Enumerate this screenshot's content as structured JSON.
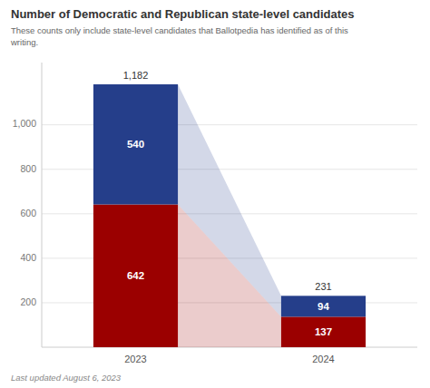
{
  "chart_data": {
    "type": "bar",
    "stacked": true,
    "title": "Number of Democratic and Republican state-level candidates",
    "subtitle": "These counts only include state-level candidates that Ballotpedia has identified as of this\nwriting.",
    "annotations": [
      "Last updated August 6, 2023"
    ],
    "categories": [
      "2023",
      "2024"
    ],
    "series": [
      {
        "color": "#9b0000",
        "values": [
          642,
          137
        ]
      },
      {
        "color": "#253e8a",
        "values": [
          540,
          94
        ]
      }
    ],
    "totals": {
      "values": [
        1182,
        231
      ],
      "value_labels": [
        "1,182",
        "231"
      ]
    },
    "data_labels": true,
    "grid": true,
    "ylim": [
      0,
      1280
    ],
    "yticks": [
      200,
      400,
      600,
      800,
      {
        "value": 1000,
        "label": "1,000"
      }
    ]
  }
}
